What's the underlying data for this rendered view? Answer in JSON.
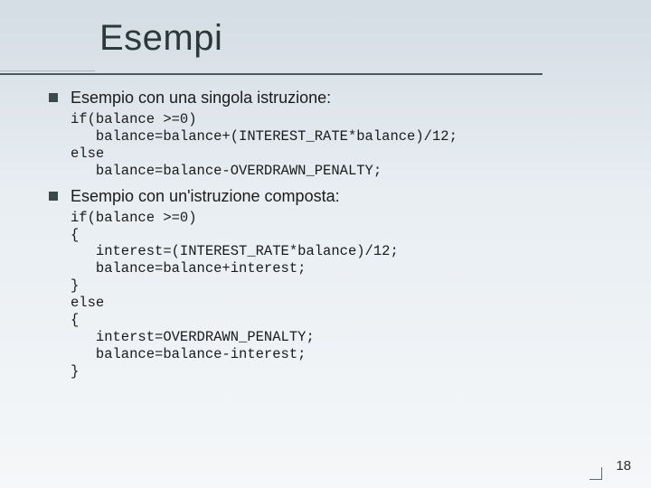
{
  "slide": {
    "title": "Esempi",
    "page_number": "18",
    "title_color": "#2a3a3a",
    "title_fontsize": 40,
    "body_fontsize": 18,
    "code_fontsize": 15.5,
    "background_gradient": [
      "#d4dce4",
      "#e8eef2",
      "#f5f7f9"
    ],
    "rule_color_light": "#a8b4b8",
    "rule_color_dark": "#4a5a5a",
    "bullet_color": "#3a4a4a"
  },
  "items": [
    {
      "label": "Esempio con una singola istruzione:",
      "code": "if(balance >=0)\n   balance=balance+(INTEREST_RATE*balance)/12;\nelse\n   balance=balance-OVERDRAWN_PENALTY;"
    },
    {
      "label": "Esempio con un'istruzione composta:",
      "code": "if(balance >=0)\n{\n   interest=(INTEREST_RATE*balance)/12;\n   balance=balance+interest;\n}\nelse\n{\n   interst=OVERDRAWN_PENALTY;\n   balance=balance-interest;\n}"
    }
  ]
}
